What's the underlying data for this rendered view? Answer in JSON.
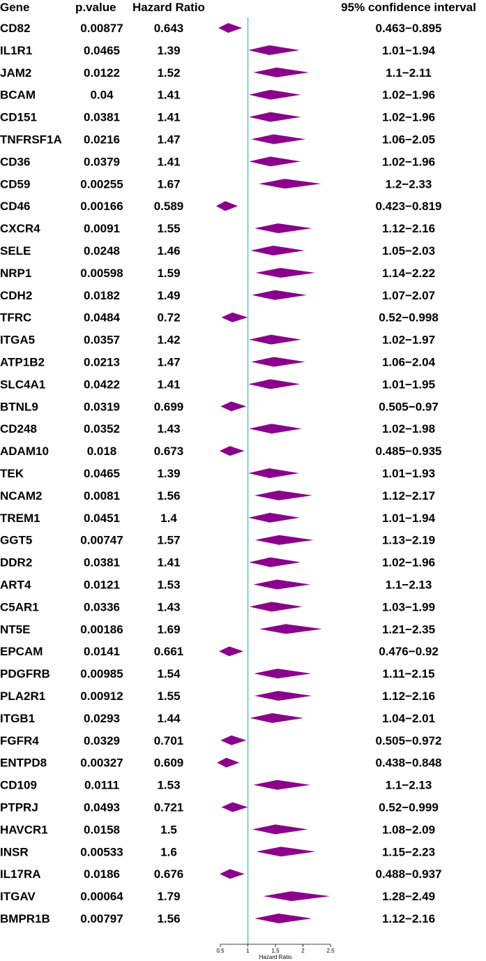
{
  "chart_data": {
    "type": "forest",
    "headers": {
      "gene": "Gene",
      "pvalue": "p.value",
      "hr": "Hazard Ratio",
      "ci": "95% confidence interval"
    },
    "xlabel": "Hazard Ratio",
    "x_ticks": [
      "0.5",
      "1",
      "1.5",
      "2",
      "2.5"
    ],
    "xlim": [
      0.5,
      2.5
    ],
    "reference_line": 1,
    "colors": {
      "marker": "#8B008B",
      "reference": "#5FC4B8"
    },
    "rows": [
      {
        "gene": "CD82",
        "pvalue": "0.00877",
        "hr": "0.643",
        "ci": "0.463−0.895"
      },
      {
        "gene": "IL1R1",
        "pvalue": "0.0465",
        "hr": "1.39",
        "ci": "1.01−1.94"
      },
      {
        "gene": "JAM2",
        "pvalue": "0.0122",
        "hr": "1.52",
        "ci": "1.1−2.11"
      },
      {
        "gene": "BCAM",
        "pvalue": "0.04",
        "hr": "1.41",
        "ci": "1.02−1.96"
      },
      {
        "gene": "CD151",
        "pvalue": "0.0381",
        "hr": "1.41",
        "ci": "1.02−1.96"
      },
      {
        "gene": "TNFRSF1A",
        "pvalue": "0.0216",
        "hr": "1.47",
        "ci": "1.06−2.05"
      },
      {
        "gene": "CD36",
        "pvalue": "0.0379",
        "hr": "1.41",
        "ci": "1.02−1.96"
      },
      {
        "gene": "CD59",
        "pvalue": "0.00255",
        "hr": "1.67",
        "ci": "1.2−2.33"
      },
      {
        "gene": "CD46",
        "pvalue": "0.00166",
        "hr": "0.589",
        "ci": "0.423−0.819"
      },
      {
        "gene": "CXCR4",
        "pvalue": "0.0091",
        "hr": "1.55",
        "ci": "1.12−2.16"
      },
      {
        "gene": "SELE",
        "pvalue": "0.0248",
        "hr": "1.46",
        "ci": "1.05−2.03"
      },
      {
        "gene": "NRP1",
        "pvalue": "0.00598",
        "hr": "1.59",
        "ci": "1.14−2.22"
      },
      {
        "gene": "CDH2",
        "pvalue": "0.0182",
        "hr": "1.49",
        "ci": "1.07−2.07"
      },
      {
        "gene": "TFRC",
        "pvalue": "0.0484",
        "hr": "0.72",
        "ci": "0.52−0.998"
      },
      {
        "gene": "ITGA5",
        "pvalue": "0.0357",
        "hr": "1.42",
        "ci": "1.02−1.97"
      },
      {
        "gene": "ATP1B2",
        "pvalue": "0.0213",
        "hr": "1.47",
        "ci": "1.06−2.04"
      },
      {
        "gene": "SLC4A1",
        "pvalue": "0.0422",
        "hr": "1.41",
        "ci": "1.01−1.95"
      },
      {
        "gene": "BTNL9",
        "pvalue": "0.0319",
        "hr": "0.699",
        "ci": "0.505−0.97"
      },
      {
        "gene": "CD248",
        "pvalue": "0.0352",
        "hr": "1.43",
        "ci": "1.02−1.98"
      },
      {
        "gene": "ADAM10",
        "pvalue": "0.018",
        "hr": "0.673",
        "ci": "0.485−0.935"
      },
      {
        "gene": "TEK",
        "pvalue": "0.0465",
        "hr": "1.39",
        "ci": "1.01−1.93"
      },
      {
        "gene": "NCAM2",
        "pvalue": "0.0081",
        "hr": "1.56",
        "ci": "1.12−2.17"
      },
      {
        "gene": "TREM1",
        "pvalue": "0.0451",
        "hr": "1.4",
        "ci": "1.01−1.94"
      },
      {
        "gene": "GGT5",
        "pvalue": "0.00747",
        "hr": "1.57",
        "ci": "1.13−2.19"
      },
      {
        "gene": "DDR2",
        "pvalue": "0.0381",
        "hr": "1.41",
        "ci": "1.02−1.96"
      },
      {
        "gene": "ART4",
        "pvalue": "0.0121",
        "hr": "1.53",
        "ci": "1.1−2.13"
      },
      {
        "gene": "C5AR1",
        "pvalue": "0.0336",
        "hr": "1.43",
        "ci": "1.03−1.99"
      },
      {
        "gene": "NT5E",
        "pvalue": "0.00186",
        "hr": "1.69",
        "ci": "1.21−2.35"
      },
      {
        "gene": "EPCAM",
        "pvalue": "0.0141",
        "hr": "0.661",
        "ci": "0.476−0.92"
      },
      {
        "gene": "PDGFRB",
        "pvalue": "0.00985",
        "hr": "1.54",
        "ci": "1.11−2.15"
      },
      {
        "gene": "PLA2R1",
        "pvalue": "0.00912",
        "hr": "1.55",
        "ci": "1.12−2.16"
      },
      {
        "gene": "ITGB1",
        "pvalue": "0.0293",
        "hr": "1.44",
        "ci": "1.04−2.01"
      },
      {
        "gene": "FGFR4",
        "pvalue": "0.0329",
        "hr": "0.701",
        "ci": "0.505−0.972"
      },
      {
        "gene": "ENTPD8",
        "pvalue": "0.00327",
        "hr": "0.609",
        "ci": "0.438−0.848"
      },
      {
        "gene": "CD109",
        "pvalue": "0.0111",
        "hr": "1.53",
        "ci": "1.1−2.13"
      },
      {
        "gene": "PTPRJ",
        "pvalue": "0.0493",
        "hr": "0.721",
        "ci": "0.52−0.999"
      },
      {
        "gene": "HAVCR1",
        "pvalue": "0.0158",
        "hr": "1.5",
        "ci": "1.08−2.09"
      },
      {
        "gene": "INSR",
        "pvalue": "0.00533",
        "hr": "1.6",
        "ci": "1.15−2.23"
      },
      {
        "gene": "IL17RA",
        "pvalue": "0.0186",
        "hr": "0.676",
        "ci": "0.488−0.937"
      },
      {
        "gene": "ITGAV",
        "pvalue": "0.00064",
        "hr": "1.79",
        "ci": "1.28−2.49"
      },
      {
        "gene": "BMPR1B",
        "pvalue": "0.00797",
        "hr": "1.56",
        "ci": "1.12−2.16"
      }
    ]
  }
}
